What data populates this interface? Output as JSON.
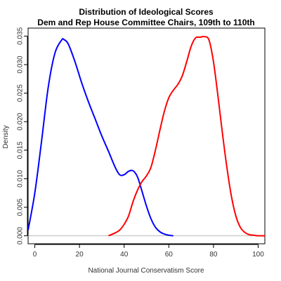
{
  "chart_data": {
    "type": "line",
    "title": "Distribution of Ideological Scores",
    "subtitle": "Dem and Rep House Committee Chairs, 109th to 110th",
    "xlabel": "National Journal Conservatism Score",
    "ylabel": "Density",
    "xlim": [
      -3,
      103
    ],
    "ylim": [
      -0.0014,
      0.0364
    ],
    "x_ticks": [
      0,
      20,
      40,
      60,
      80,
      100
    ],
    "x_tick_labels": [
      "0",
      "20",
      "40",
      "60",
      "80",
      "100"
    ],
    "y_ticks": [
      0.0,
      0.005,
      0.01,
      0.015,
      0.02,
      0.025,
      0.03,
      0.035
    ],
    "y_tick_labels": [
      "0.000",
      "0.005",
      "0.010",
      "0.015",
      "0.020",
      "0.025",
      "0.030",
      "0.035"
    ],
    "baseline": 0,
    "grid": false,
    "series": [
      {
        "color": "#0000ff",
        "x": [
          -3,
          0,
          3,
          6,
          9,
          12,
          13,
          15,
          18,
          21,
          24,
          27,
          30,
          33,
          36,
          38,
          40,
          42,
          44,
          46,
          48,
          50,
          52,
          54,
          56,
          58,
          60,
          62
        ],
        "y": [
          0.001,
          0.0075,
          0.0165,
          0.026,
          0.032,
          0.0343,
          0.0344,
          0.0336,
          0.0305,
          0.0268,
          0.0235,
          0.0205,
          0.0175,
          0.0148,
          0.012,
          0.0107,
          0.0107,
          0.0113,
          0.0114,
          0.0103,
          0.0078,
          0.0052,
          0.003,
          0.0015,
          0.0007,
          0.0003,
          0.0001,
          0.0
        ]
      },
      {
        "color": "#ff0000",
        "x": [
          33,
          36,
          38,
          40,
          42,
          44,
          46,
          48,
          50,
          52,
          54,
          56,
          58,
          60,
          62,
          64,
          66,
          68,
          70,
          72,
          74,
          76,
          78,
          80,
          82,
          84,
          86,
          88,
          90,
          92,
          94,
          96,
          98,
          100,
          103
        ],
        "y": [
          0.0,
          0.0005,
          0.001,
          0.002,
          0.0035,
          0.006,
          0.008,
          0.0095,
          0.0105,
          0.012,
          0.015,
          0.0185,
          0.0218,
          0.0242,
          0.0255,
          0.0265,
          0.028,
          0.0305,
          0.0332,
          0.0347,
          0.0348,
          0.0349,
          0.0343,
          0.0305,
          0.0245,
          0.018,
          0.012,
          0.007,
          0.0035,
          0.0015,
          0.0006,
          0.0002,
          0.0001,
          0.0,
          0.0
        ]
      }
    ]
  }
}
